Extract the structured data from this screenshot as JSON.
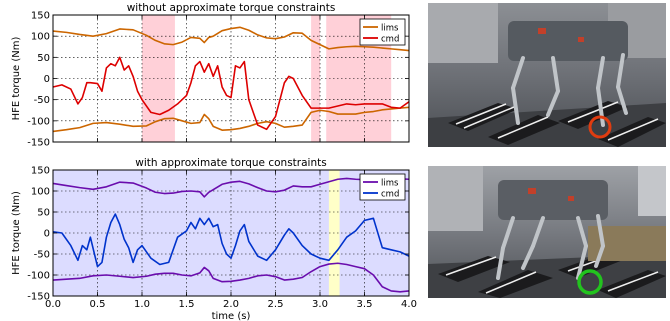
{
  "chart_data": [
    {
      "type": "line",
      "title": "without approximate torque constraints",
      "xlabel": "",
      "ylabel": "HFE torque (Nm)",
      "xlim": [
        0.0,
        4.0
      ],
      "ylim": [
        -150,
        150
      ],
      "xticks": [],
      "yticks": [
        -150,
        -100,
        -50,
        0,
        50,
        100,
        150
      ],
      "grid": true,
      "legend": "top-right",
      "highlight_color": "#ffd0d8",
      "highlight_regions": [
        [
          1.0,
          1.37
        ],
        [
          2.9,
          3.0
        ],
        [
          3.07,
          3.8
        ]
      ],
      "series": [
        {
          "name": "lims",
          "color": "#cc6600",
          "lines": [
            {
              "x": [
                0.0,
                0.15,
                0.3,
                0.45,
                0.6,
                0.75,
                0.9,
                1.05,
                1.15,
                1.25,
                1.35,
                1.45,
                1.55,
                1.65,
                1.7,
                1.75,
                1.8,
                1.9,
                2.0,
                2.1,
                2.2,
                2.3,
                2.4,
                2.5,
                2.6,
                2.7,
                2.8,
                2.9,
                3.0,
                3.1,
                3.2,
                3.3,
                3.4,
                3.5,
                3.6,
                3.7,
                3.8,
                3.9,
                4.0
              ],
              "y": [
                112,
                109,
                104,
                100,
                106,
                117,
                115,
                102,
                90,
                82,
                80,
                86,
                97,
                95,
                85,
                97,
                100,
                113,
                118,
                121,
                114,
                103,
                96,
                94,
                98,
                108,
                107,
                90,
                80,
                70,
                73,
                75,
                76,
                75,
                74,
                72,
                70,
                68,
                66
              ]
            },
            {
              "x": [
                0.0,
                0.15,
                0.3,
                0.45,
                0.6,
                0.75,
                0.9,
                1.05,
                1.15,
                1.25,
                1.35,
                1.45,
                1.55,
                1.65,
                1.7,
                1.75,
                1.8,
                1.9,
                2.0,
                2.1,
                2.2,
                2.3,
                2.4,
                2.5,
                2.6,
                2.7,
                2.8,
                2.9,
                3.0,
                3.1,
                3.2,
                3.3,
                3.4,
                3.5,
                3.6,
                3.7,
                3.8,
                3.9,
                4.0
              ],
              "y": [
                -125,
                -121,
                -116,
                -106,
                -104,
                -108,
                -113,
                -112,
                -102,
                -95,
                -94,
                -100,
                -106,
                -104,
                -85,
                -95,
                -113,
                -122,
                -121,
                -118,
                -113,
                -106,
                -102,
                -106,
                -115,
                -113,
                -110,
                -80,
                -75,
                -78,
                -84,
                -84,
                -84,
                -80,
                -78,
                -74,
                -72,
                -70,
                -68
              ]
            }
          ]
        },
        {
          "name": "cmd",
          "color": "#dd0000",
          "lines": [
            {
              "x": [
                0.0,
                0.1,
                0.2,
                0.28,
                0.33,
                0.38,
                0.42,
                0.5,
                0.55,
                0.6,
                0.65,
                0.7,
                0.75,
                0.8,
                0.85,
                0.9,
                0.95,
                1.0,
                1.1,
                1.2,
                1.3,
                1.4,
                1.5,
                1.55,
                1.6,
                1.65,
                1.7,
                1.75,
                1.8,
                1.85,
                1.9,
                1.95,
                2.0,
                2.05,
                2.1,
                2.15,
                2.2,
                2.3,
                2.4,
                2.5,
                2.6,
                2.65,
                2.7,
                2.8,
                2.9,
                3.0,
                3.1,
                3.2,
                3.3,
                3.4,
                3.5,
                3.6,
                3.7,
                3.8,
                3.9,
                4.0
              ],
              "y": [
                -20,
                -15,
                -25,
                -60,
                -45,
                -10,
                -10,
                -12,
                -30,
                25,
                35,
                30,
                50,
                20,
                30,
                5,
                -30,
                -50,
                -80,
                -85,
                -75,
                -60,
                -40,
                -10,
                30,
                40,
                15,
                35,
                5,
                30,
                -20,
                -40,
                -45,
                30,
                25,
                40,
                -50,
                -110,
                -120,
                -90,
                -10,
                5,
                0,
                -40,
                -70,
                -70,
                -70,
                -65,
                -60,
                -62,
                -60,
                -60,
                -60,
                -68,
                -70,
                -55
              ]
            }
          ]
        }
      ]
    },
    {
      "type": "line",
      "title": "with approximate torque constraints",
      "xlabel": "time (s)",
      "ylabel": "HFE torque (Nm)",
      "xlim": [
        0.0,
        4.0
      ],
      "ylim": [
        -150,
        150
      ],
      "xticks": [
        0.0,
        0.5,
        1.0,
        1.5,
        2.0,
        2.5,
        3.0,
        3.5,
        4.0
      ],
      "yticks": [
        -150,
        -100,
        -50,
        0,
        50,
        100,
        150
      ],
      "grid": true,
      "legend": "top-right",
      "background_color": "#dcdcff",
      "highlight_color": "#ffffc8",
      "highlight_regions": [
        [
          3.1,
          3.22
        ]
      ],
      "series": [
        {
          "name": "lims",
          "color": "#6a0dad",
          "lines": [
            {
              "x": [
                0.0,
                0.15,
                0.3,
                0.45,
                0.6,
                0.75,
                0.9,
                1.05,
                1.15,
                1.25,
                1.35,
                1.45,
                1.55,
                1.65,
                1.7,
                1.75,
                1.8,
                1.9,
                2.0,
                2.1,
                2.2,
                2.3,
                2.4,
                2.5,
                2.6,
                2.7,
                2.8,
                2.9,
                3.0,
                3.1,
                3.2,
                3.3,
                3.4,
                3.5,
                3.6,
                3.7,
                3.8,
                3.9,
                4.0
              ],
              "y": [
                118,
                113,
                108,
                104,
                110,
                121,
                119,
                107,
                97,
                94,
                95,
                99,
                100,
                98,
                86,
                97,
                103,
                116,
                121,
                123,
                117,
                108,
                100,
                98,
                102,
                112,
                110,
                110,
                116,
                122,
                128,
                130,
                128,
                127,
                125,
                124,
                128,
                129,
                128
              ]
            },
            {
              "x": [
                0.0,
                0.15,
                0.3,
                0.45,
                0.6,
                0.75,
                0.9,
                1.05,
                1.15,
                1.25,
                1.35,
                1.45,
                1.55,
                1.65,
                1.7,
                1.75,
                1.8,
                1.9,
                2.0,
                2.1,
                2.2,
                2.3,
                2.4,
                2.5,
                2.6,
                2.7,
                2.8,
                2.9,
                3.0,
                3.1,
                3.2,
                3.3,
                3.4,
                3.5,
                3.6,
                3.7,
                3.8,
                3.9,
                4.0
              ],
              "y": [
                -112,
                -110,
                -108,
                -102,
                -100,
                -103,
                -106,
                -103,
                -98,
                -96,
                -96,
                -100,
                -102,
                -95,
                -82,
                -90,
                -108,
                -116,
                -115,
                -112,
                -108,
                -102,
                -100,
                -104,
                -112,
                -110,
                -106,
                -92,
                -80,
                -74,
                -72,
                -75,
                -80,
                -85,
                -100,
                -128,
                -138,
                -140,
                -138
              ]
            }
          ]
        },
        {
          "name": "cmd",
          "color": "#0033cc",
          "lines": [
            {
              "x": [
                0.0,
                0.1,
                0.2,
                0.28,
                0.33,
                0.38,
                0.42,
                0.5,
                0.55,
                0.6,
                0.65,
                0.7,
                0.75,
                0.8,
                0.85,
                0.9,
                0.95,
                1.0,
                1.1,
                1.2,
                1.3,
                1.4,
                1.5,
                1.55,
                1.6,
                1.65,
                1.7,
                1.75,
                1.8,
                1.85,
                1.9,
                1.95,
                2.0,
                2.05,
                2.1,
                2.15,
                2.2,
                2.3,
                2.4,
                2.5,
                2.6,
                2.65,
                2.7,
                2.8,
                2.9,
                3.0,
                3.1,
                3.2,
                3.3,
                3.4,
                3.5,
                3.6,
                3.7,
                3.8,
                3.9,
                4.0
              ],
              "y": [
                3,
                0,
                -30,
                -65,
                -30,
                -40,
                -10,
                -80,
                -70,
                -10,
                25,
                45,
                20,
                -15,
                -35,
                -70,
                -40,
                -30,
                -60,
                -75,
                -70,
                -10,
                5,
                25,
                10,
                35,
                20,
                35,
                15,
                20,
                -25,
                -50,
                -60,
                -30,
                5,
                20,
                -20,
                -55,
                -65,
                -40,
                -5,
                10,
                0,
                -30,
                -50,
                -60,
                -65,
                -40,
                -10,
                5,
                30,
                35,
                -35,
                -40,
                -45,
                -55
              ]
            }
          ]
        }
      ]
    }
  ]
}
